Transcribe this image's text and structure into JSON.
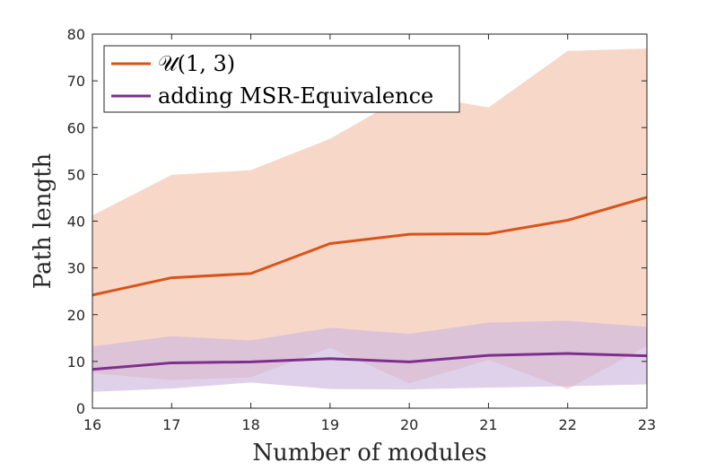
{
  "chart_data": {
    "type": "line",
    "xlabel": "Number of modules",
    "ylabel": "Path length",
    "xlim": [
      16,
      23
    ],
    "ylim": [
      0,
      80
    ],
    "xticks": [
      16,
      17,
      18,
      19,
      20,
      21,
      22,
      23
    ],
    "yticks": [
      0,
      10,
      20,
      30,
      40,
      50,
      60,
      70,
      80
    ],
    "grid": false,
    "legend_position": "top-left",
    "x": [
      16,
      17,
      18,
      19,
      20,
      21,
      22,
      23
    ],
    "series": [
      {
        "name": "𝒰(1, 3)",
        "color": "#d95319",
        "values": [
          24.2,
          27.9,
          28.8,
          35.2,
          37.2,
          37.3,
          40.2,
          45.1
        ],
        "band_upper": [
          41.2,
          49.9,
          50.9,
          57.6,
          67.3,
          64.3,
          76.4,
          76.9
        ],
        "band_lower": [
          7.5,
          6.0,
          6.6,
          12.9,
          5.3,
          10.3,
          4.1,
          13.3
        ],
        "band_color": "#f4c9b6"
      },
      {
        "name": "adding MSR-Equivalence",
        "color": "#7e2f8e",
        "values": [
          8.3,
          9.7,
          9.9,
          10.6,
          9.9,
          11.3,
          11.7,
          11.2
        ],
        "band_upper": [
          13.2,
          15.4,
          14.5,
          17.2,
          15.9,
          18.3,
          18.7,
          17.4
        ],
        "band_lower": [
          3.5,
          4.2,
          5.5,
          4.1,
          4.0,
          4.4,
          4.7,
          5.1
        ],
        "band_color": "#cfb8e0"
      }
    ]
  }
}
